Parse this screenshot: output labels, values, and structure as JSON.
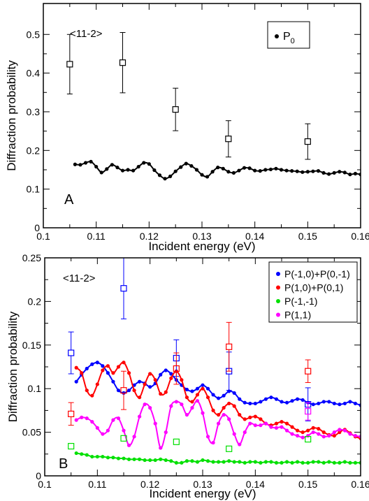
{
  "chart_data": [
    {
      "panel": "A",
      "type": "scatter",
      "annotation": "<11-2>",
      "xlabel": "Incident energy (eV)",
      "ylabel": "Diffraction probability",
      "xlim": [
        0.1,
        0.16
      ],
      "ylim": [
        0,
        0.58
      ],
      "xticks": [
        "0.1",
        "0.11",
        "0.12",
        "0.13",
        "0.14",
        "0.15",
        "0.16"
      ],
      "yticks": [
        "0",
        "0.1",
        "0.2",
        "0.3",
        "0.4",
        "0.5"
      ],
      "legend": {
        "position": "top-right",
        "entries": [
          {
            "label": "P",
            "subscript": "0",
            "color": "#000000"
          }
        ]
      },
      "series": [
        {
          "name": "P0",
          "color": "#000000",
          "x": [
            0.106,
            0.107,
            0.108,
            0.109,
            0.11,
            0.111,
            0.112,
            0.113,
            0.114,
            0.115,
            0.116,
            0.117,
            0.118,
            0.119,
            0.12,
            0.121,
            0.122,
            0.123,
            0.124,
            0.125,
            0.126,
            0.127,
            0.128,
            0.129,
            0.13,
            0.131,
            0.132,
            0.133,
            0.134,
            0.135,
            0.136,
            0.137,
            0.138,
            0.139,
            0.14,
            0.141,
            0.142,
            0.143,
            0.144,
            0.145,
            0.146,
            0.147,
            0.148,
            0.149,
            0.15,
            0.151,
            0.152,
            0.153,
            0.154,
            0.155,
            0.156,
            0.157,
            0.158,
            0.159,
            0.16
          ],
          "y": [
            0.164,
            0.163,
            0.168,
            0.171,
            0.158,
            0.143,
            0.152,
            0.163,
            0.156,
            0.148,
            0.15,
            0.148,
            0.158,
            0.168,
            0.165,
            0.149,
            0.136,
            0.127,
            0.133,
            0.146,
            0.157,
            0.166,
            0.16,
            0.15,
            0.137,
            0.132,
            0.145,
            0.156,
            0.153,
            0.145,
            0.142,
            0.148,
            0.155,
            0.154,
            0.148,
            0.147,
            0.15,
            0.151,
            0.153,
            0.15,
            0.148,
            0.147,
            0.146,
            0.144,
            0.145,
            0.146,
            0.147,
            0.142,
            0.139,
            0.142,
            0.145,
            0.143,
            0.138,
            0.14,
            0.138
          ]
        }
      ],
      "experimental": {
        "color": "#000000",
        "x": [
          0.105,
          0.115,
          0.125,
          0.135,
          0.15
        ],
        "y": [
          0.423,
          0.427,
          0.306,
          0.23,
          0.223
        ],
        "err": [
          0.077,
          0.078,
          0.055,
          0.047,
          0.046
        ]
      }
    },
    {
      "panel": "B",
      "type": "scatter",
      "annotation": "<11-2>",
      "xlabel": "Incident energy (eV)",
      "ylabel": "Diffraction probability",
      "xlim": [
        0.1,
        0.16
      ],
      "ylim": [
        0,
        0.25
      ],
      "xticks": [
        "0.1",
        "0.11",
        "0.12",
        "0.13",
        "0.14",
        "0.15",
        "0.16"
      ],
      "yticks": [
        "0",
        "0.05",
        "0.1",
        "0.15",
        "0.2",
        "0.25"
      ],
      "legend": {
        "position": "top-right",
        "entries": [
          {
            "label": "P(-1,0)+P(0,-1)",
            "color": "#0000ff"
          },
          {
            "label": "P(1,0)+P(0,1)",
            "color": "#ff0000"
          },
          {
            "label": "P(-1,-1)",
            "color": "#00e000"
          },
          {
            "label": "P(1,1)",
            "color": "#ff00ff"
          }
        ]
      },
      "series": [
        {
          "name": "P(-1,0)+P(0,-1)",
          "color": "#0000ff",
          "x": [
            0.106,
            0.107,
            0.108,
            0.109,
            0.11,
            0.111,
            0.112,
            0.113,
            0.114,
            0.115,
            0.116,
            0.117,
            0.118,
            0.119,
            0.12,
            0.121,
            0.122,
            0.123,
            0.124,
            0.125,
            0.126,
            0.127,
            0.128,
            0.129,
            0.13,
            0.131,
            0.132,
            0.133,
            0.134,
            0.135,
            0.136,
            0.137,
            0.138,
            0.139,
            0.14,
            0.141,
            0.142,
            0.143,
            0.144,
            0.145,
            0.146,
            0.147,
            0.148,
            0.149,
            0.15,
            0.151,
            0.152,
            0.153,
            0.154,
            0.155,
            0.156,
            0.157,
            0.158,
            0.159,
            0.16
          ],
          "y": [
            0.108,
            0.116,
            0.123,
            0.128,
            0.13,
            0.126,
            0.118,
            0.108,
            0.098,
            0.095,
            0.098,
            0.104,
            0.108,
            0.106,
            0.102,
            0.106,
            0.116,
            0.121,
            0.117,
            0.11,
            0.104,
            0.099,
            0.097,
            0.1,
            0.104,
            0.1,
            0.093,
            0.089,
            0.092,
            0.097,
            0.095,
            0.088,
            0.084,
            0.083,
            0.083,
            0.085,
            0.088,
            0.09,
            0.088,
            0.085,
            0.084,
            0.086,
            0.088,
            0.087,
            0.084,
            0.082,
            0.083,
            0.085,
            0.085,
            0.083,
            0.082,
            0.083,
            0.085,
            0.083,
            0.081
          ]
        },
        {
          "name": "P(1,0)+P(0,1)",
          "color": "#ff0000",
          "x": [
            0.106,
            0.107,
            0.108,
            0.109,
            0.11,
            0.111,
            0.112,
            0.113,
            0.114,
            0.115,
            0.116,
            0.117,
            0.118,
            0.119,
            0.12,
            0.121,
            0.122,
            0.123,
            0.124,
            0.125,
            0.126,
            0.127,
            0.128,
            0.129,
            0.13,
            0.131,
            0.132,
            0.133,
            0.134,
            0.135,
            0.136,
            0.137,
            0.138,
            0.139,
            0.14,
            0.141,
            0.142,
            0.143,
            0.144,
            0.145,
            0.146,
            0.147,
            0.148,
            0.149,
            0.15,
            0.151,
            0.152,
            0.153,
            0.154,
            0.155,
            0.156,
            0.157,
            0.158,
            0.159,
            0.16
          ],
          "y": [
            0.124,
            0.118,
            0.098,
            0.092,
            0.105,
            0.121,
            0.126,
            0.118,
            0.125,
            0.13,
            0.118,
            0.098,
            0.09,
            0.105,
            0.117,
            0.11,
            0.094,
            0.096,
            0.112,
            0.12,
            0.11,
            0.09,
            0.085,
            0.093,
            0.1,
            0.09,
            0.075,
            0.07,
            0.078,
            0.083,
            0.08,
            0.07,
            0.065,
            0.067,
            0.068,
            0.065,
            0.06,
            0.058,
            0.06,
            0.062,
            0.06,
            0.056,
            0.052,
            0.05,
            0.052,
            0.055,
            0.054,
            0.05,
            0.047,
            0.046,
            0.05,
            0.053,
            0.049,
            0.045,
            0.043
          ]
        },
        {
          "name": "P(-1,-1)",
          "color": "#00e000",
          "x": [
            0.106,
            0.107,
            0.108,
            0.109,
            0.11,
            0.111,
            0.112,
            0.113,
            0.114,
            0.115,
            0.116,
            0.117,
            0.118,
            0.119,
            0.12,
            0.121,
            0.122,
            0.123,
            0.124,
            0.125,
            0.126,
            0.127,
            0.128,
            0.129,
            0.13,
            0.131,
            0.132,
            0.133,
            0.134,
            0.135,
            0.136,
            0.137,
            0.138,
            0.139,
            0.14,
            0.141,
            0.142,
            0.143,
            0.144,
            0.145,
            0.146,
            0.147,
            0.148,
            0.149,
            0.15,
            0.151,
            0.152,
            0.153,
            0.154,
            0.155,
            0.156,
            0.157,
            0.158,
            0.159,
            0.16
          ],
          "y": [
            0.026,
            0.025,
            0.024,
            0.022,
            0.022,
            0.022,
            0.021,
            0.021,
            0.02,
            0.02,
            0.019,
            0.019,
            0.019,
            0.018,
            0.018,
            0.018,
            0.019,
            0.018,
            0.017,
            0.015,
            0.015,
            0.017,
            0.017,
            0.016,
            0.018,
            0.017,
            0.016,
            0.016,
            0.016,
            0.017,
            0.016,
            0.016,
            0.015,
            0.016,
            0.016,
            0.015,
            0.016,
            0.016,
            0.015,
            0.015,
            0.016,
            0.015,
            0.016,
            0.015,
            0.015,
            0.016,
            0.016,
            0.015,
            0.016,
            0.015,
            0.015,
            0.016,
            0.015,
            0.015,
            0.015
          ]
        },
        {
          "name": "P(1,1)",
          "color": "#ff00ff",
          "x": [
            0.106,
            0.107,
            0.108,
            0.109,
            0.11,
            0.111,
            0.112,
            0.113,
            0.114,
            0.115,
            0.116,
            0.117,
            0.118,
            0.119,
            0.12,
            0.121,
            0.122,
            0.123,
            0.124,
            0.125,
            0.126,
            0.127,
            0.128,
            0.129,
            0.13,
            0.131,
            0.132,
            0.133,
            0.134,
            0.135,
            0.136,
            0.137,
            0.138,
            0.139,
            0.14,
            0.141,
            0.142,
            0.143,
            0.144,
            0.145,
            0.146,
            0.147,
            0.148,
            0.149,
            0.15,
            0.151,
            0.152,
            0.153,
            0.154,
            0.155,
            0.156,
            0.157,
            0.158,
            0.159,
            0.16
          ],
          "y": [
            0.064,
            0.067,
            0.066,
            0.062,
            0.055,
            0.048,
            0.052,
            0.064,
            0.066,
            0.052,
            0.035,
            0.045,
            0.068,
            0.082,
            0.078,
            0.06,
            0.032,
            0.05,
            0.08,
            0.085,
            0.082,
            0.07,
            0.078,
            0.086,
            0.072,
            0.045,
            0.038,
            0.06,
            0.07,
            0.065,
            0.048,
            0.036,
            0.05,
            0.06,
            0.058,
            0.058,
            0.06,
            0.056,
            0.055,
            0.056,
            0.052,
            0.048,
            0.046,
            0.044,
            0.046,
            0.05,
            0.048,
            0.045,
            0.046,
            0.05,
            0.053,
            0.052,
            0.048,
            0.046,
            0.045
          ]
        }
      ],
      "experimental": [
        {
          "color": "#0000ff",
          "x": [
            0.105,
            0.115,
            0.125,
            0.135,
            0.15
          ],
          "y": [
            0.141,
            0.215,
            0.135,
            0.12,
            0.082
          ],
          "err": [
            0.024,
            0.035,
            0.021,
            0.022,
            0.019
          ]
        },
        {
          "color": "#ff0000",
          "x": [
            0.105,
            0.115,
            0.125,
            0.135,
            0.15
          ],
          "y": [
            0.071,
            0.098,
            0.123,
            0.148,
            0.12
          ],
          "err": [
            0.013,
            0.022,
            0.018,
            0.028,
            0.013
          ]
        },
        {
          "color": "#00e000",
          "x": [
            0.105,
            0.115,
            0.125,
            0.135,
            0.15
          ],
          "y": [
            0.034,
            0.043,
            0.039,
            0.031,
            0.042
          ],
          "err": [
            0,
            0,
            0,
            0,
            0
          ]
        },
        {
          "color": "#ff00ff",
          "x": [
            0.15
          ],
          "y": [
            0.074
          ],
          "err": [
            0.01
          ]
        }
      ]
    }
  ]
}
